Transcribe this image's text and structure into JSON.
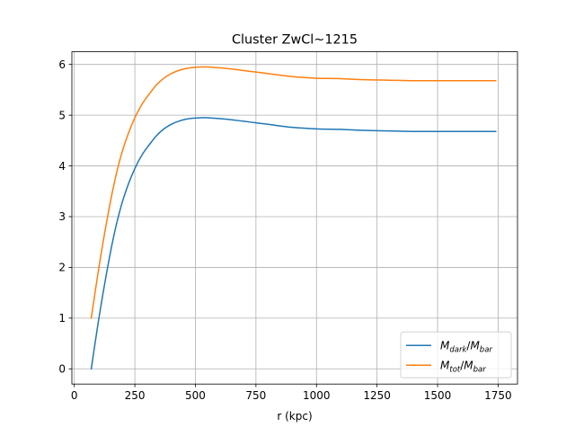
{
  "chart_data": {
    "type": "line",
    "title": "Cluster ZwCl~1215",
    "xlabel": "r (kpc)",
    "ylabel": "",
    "xlim": [
      -10,
      1830
    ],
    "ylim": [
      -0.3,
      6.25
    ],
    "xticks": [
      0,
      250,
      500,
      750,
      1000,
      1250,
      1500,
      1750
    ],
    "yticks": [
      0,
      1,
      2,
      3,
      4,
      5,
      6
    ],
    "grid": true,
    "legend_position": "lower right",
    "series": [
      {
        "name": "M_dark/M_bar",
        "legend": {
          "main": "M",
          "sub": "dark",
          "sep": "/",
          "main2": "M",
          "sub2": "bar"
        },
        "color": "#1f77b4",
        "x": [
          70,
          100,
          130,
          160,
          190,
          220,
          250,
          280,
          310,
          340,
          370,
          400,
          430,
          460,
          490,
          520,
          550,
          580,
          610,
          650,
          700,
          750,
          800,
          900,
          1000,
          1100,
          1200,
          1300,
          1400,
          1500,
          1600,
          1700,
          1740
        ],
        "y": [
          0.0,
          0.95,
          1.8,
          2.55,
          3.15,
          3.6,
          3.95,
          4.22,
          4.42,
          4.6,
          4.73,
          4.82,
          4.88,
          4.92,
          4.94,
          4.95,
          4.95,
          4.94,
          4.93,
          4.91,
          4.88,
          4.85,
          4.82,
          4.76,
          4.73,
          4.72,
          4.7,
          4.69,
          4.68,
          4.68,
          4.68,
          4.68,
          4.68
        ]
      },
      {
        "name": "M_tot/M_bar",
        "legend": {
          "main": "M",
          "sub": "tot",
          "sep": "/",
          "main2": "M",
          "sub2": "bar"
        },
        "color": "#ff7f0e",
        "x": [
          70,
          100,
          130,
          160,
          190,
          220,
          250,
          280,
          310,
          340,
          370,
          400,
          430,
          460,
          490,
          520,
          550,
          580,
          610,
          650,
          700,
          750,
          800,
          900,
          1000,
          1100,
          1200,
          1300,
          1400,
          1500,
          1600,
          1700,
          1740
        ],
        "y": [
          1.0,
          1.95,
          2.8,
          3.55,
          4.15,
          4.6,
          4.95,
          5.22,
          5.42,
          5.6,
          5.73,
          5.82,
          5.88,
          5.92,
          5.94,
          5.95,
          5.95,
          5.94,
          5.93,
          5.91,
          5.88,
          5.85,
          5.82,
          5.76,
          5.73,
          5.72,
          5.7,
          5.69,
          5.68,
          5.68,
          5.68,
          5.68,
          5.68
        ]
      }
    ]
  }
}
